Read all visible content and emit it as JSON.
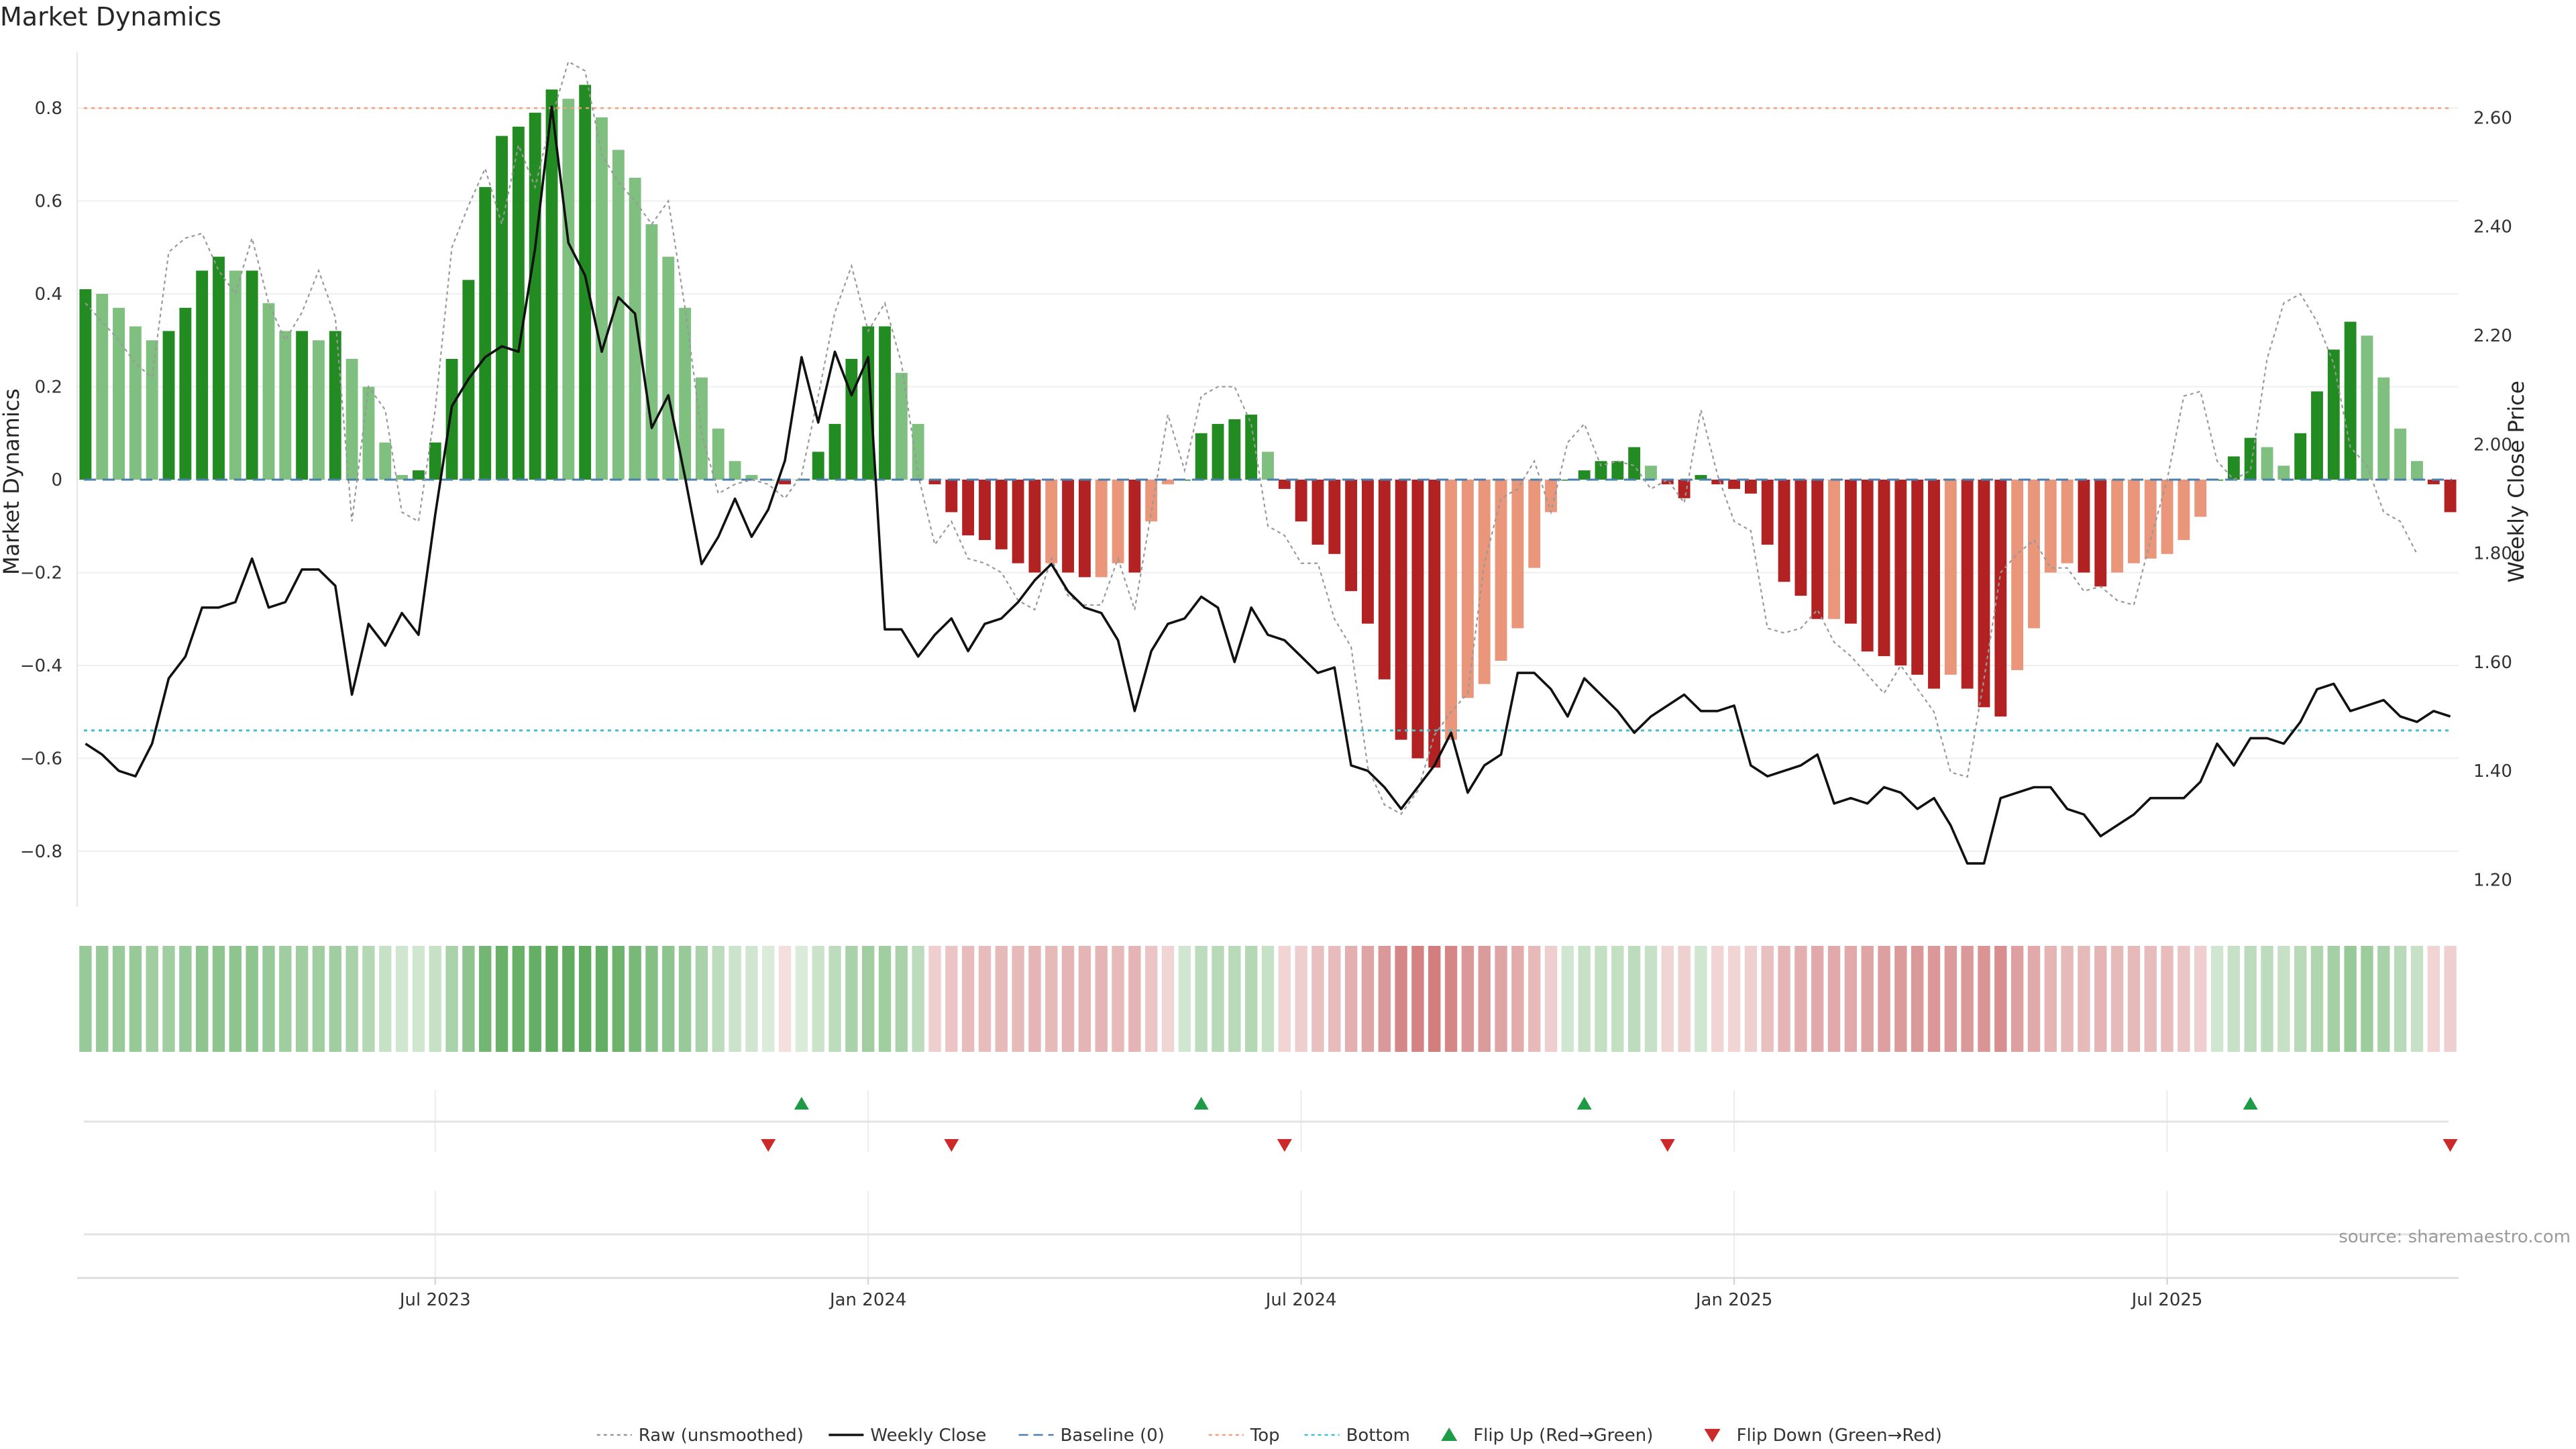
{
  "chart_data": {
    "type": "bar",
    "title": "Market Dynamics",
    "ylabel_left": "Market Dynamics",
    "ylabel_right": "Weekly Close Price",
    "left_ylim": [
      -0.92,
      0.92
    ],
    "left_yticks": [
      -0.8,
      -0.6,
      -0.4,
      -0.2,
      0,
      0.2,
      0.4,
      0.6,
      0.8
    ],
    "right_ylim": [
      1.15,
      2.72
    ],
    "right_yticks": [
      1.2,
      1.4,
      1.6,
      1.8,
      2.0,
      2.2,
      2.4,
      2.6
    ],
    "x_ticks": [
      {
        "label": "Jul 2023",
        "week": 21
      },
      {
        "label": "Jan 2024",
        "week": 47
      },
      {
        "label": "Jul 2024",
        "week": 73
      },
      {
        "label": "Jan 2025",
        "week": 99
      },
      {
        "label": "Jul 2025",
        "week": 125
      }
    ],
    "weeks": 143,
    "top_line": 0.8,
    "bottom_line": -0.54,
    "baseline": 0,
    "grid": true,
    "legend_position": "bottom-center",
    "legend": [
      {
        "label": "Raw (unsmoothed)",
        "kind": "dotted-line",
        "color": "#999999"
      },
      {
        "label": "Weekly Close",
        "kind": "solid-line",
        "color": "#111111"
      },
      {
        "label": "Baseline (0)",
        "kind": "dashed-line",
        "color": "#4a7fb0"
      },
      {
        "label": "Top",
        "kind": "dotted-line",
        "color": "#f0a07a"
      },
      {
        "label": "Bottom",
        "kind": "dotted-line",
        "color": "#3fbfcf"
      },
      {
        "label": "Flip Up (Red→Green)",
        "kind": "triangle-up",
        "color": "#1f9a46"
      },
      {
        "label": "Flip Down (Green→Red)",
        "kind": "triangle-down",
        "color": "#cc2a2a"
      }
    ],
    "colors": {
      "green_strong": "#228b22",
      "green_light": "#7fbf7f",
      "red_strong": "#b22222",
      "red_light": "#e9967a",
      "price_line": "#111111",
      "raw_line": "#999999",
      "flip_up": "#1f9a46",
      "flip_down": "#cc2a2a"
    },
    "market_dynamics": [
      0.41,
      0.4,
      0.37,
      0.33,
      0.3,
      0.32,
      0.37,
      0.45,
      0.48,
      0.45,
      0.45,
      0.38,
      0.32,
      0.32,
      0.3,
      0.32,
      0.26,
      0.2,
      0.08,
      0.01,
      0.02,
      0.08,
      0.26,
      0.43,
      0.63,
      0.74,
      0.76,
      0.79,
      0.84,
      0.82,
      0.85,
      0.78,
      0.71,
      0.65,
      0.55,
      0.48,
      0.37,
      0.22,
      0.11,
      0.04,
      0.01,
      0.0,
      -0.01,
      0.0,
      0.06,
      0.12,
      0.26,
      0.33,
      0.33,
      0.23,
      0.12,
      -0.01,
      -0.07,
      -0.12,
      -0.13,
      -0.15,
      -0.18,
      -0.2,
      -0.18,
      -0.2,
      -0.21,
      -0.21,
      -0.18,
      -0.2,
      -0.09,
      -0.01,
      0.0,
      0.1,
      0.12,
      0.13,
      0.14,
      0.06,
      -0.02,
      -0.09,
      -0.14,
      -0.16,
      -0.24,
      -0.31,
      -0.43,
      -0.56,
      -0.6,
      -0.62,
      -0.56,
      -0.47,
      -0.44,
      -0.39,
      -0.32,
      -0.19,
      -0.07,
      0.0,
      0.02,
      0.04,
      0.04,
      0.07,
      0.03,
      -0.01,
      -0.04,
      0.01,
      -0.01,
      -0.02,
      -0.03,
      -0.14,
      -0.22,
      -0.25,
      -0.3,
      -0.3,
      -0.31,
      -0.37,
      -0.38,
      -0.4,
      -0.42,
      -0.45,
      -0.42,
      -0.45,
      -0.49,
      -0.51,
      -0.41,
      -0.32,
      -0.2,
      -0.18,
      -0.2,
      -0.23,
      -0.2,
      -0.18,
      -0.17,
      -0.16,
      -0.13,
      -0.08,
      0.0,
      0.05,
      0.09,
      0.07,
      0.03,
      0.1,
      0.19,
      0.28,
      0.34,
      0.31,
      0.22,
      0.11,
      0.04,
      -0.01,
      -0.07
    ],
    "raw_unsmoothed": [
      0.38,
      0.34,
      0.3,
      0.25,
      0.22,
      0.49,
      0.52,
      0.53,
      0.45,
      0.4,
      0.52,
      0.38,
      0.3,
      0.36,
      0.45,
      0.35,
      -0.09,
      0.2,
      0.15,
      -0.07,
      -0.09,
      0.15,
      0.5,
      0.59,
      0.67,
      0.55,
      0.72,
      0.63,
      0.78,
      0.9,
      0.88,
      0.7,
      0.64,
      0.6,
      0.55,
      0.6,
      0.37,
      0.1,
      -0.03,
      -0.01,
      0.0,
      -0.01,
      -0.04,
      0.01,
      0.18,
      0.36,
      0.46,
      0.32,
      0.38,
      0.25,
      0.01,
      -0.14,
      -0.09,
      -0.17,
      -0.18,
      -0.2,
      -0.26,
      -0.28,
      -0.17,
      -0.25,
      -0.27,
      -0.27,
      -0.17,
      -0.28,
      -0.07,
      0.14,
      0.02,
      0.18,
      0.2,
      0.2,
      0.12,
      -0.1,
      -0.12,
      -0.18,
      -0.18,
      -0.3,
      -0.36,
      -0.62,
      -0.7,
      -0.72,
      -0.67,
      -0.55,
      -0.5,
      -0.46,
      -0.18,
      -0.04,
      -0.02,
      0.04,
      -0.07,
      0.08,
      0.12,
      0.03,
      0.04,
      0.03,
      -0.02,
      0.0,
      -0.05,
      0.15,
      0.01,
      -0.09,
      -0.11,
      -0.32,
      -0.33,
      -0.32,
      -0.28,
      -0.35,
      -0.38,
      -0.42,
      -0.46,
      -0.4,
      -0.45,
      -0.5,
      -0.63,
      -0.64,
      -0.43,
      -0.2,
      -0.16,
      -0.13,
      -0.19,
      -0.19,
      -0.24,
      -0.23,
      -0.26,
      -0.27,
      -0.13,
      0.0,
      0.18,
      0.19,
      0.04,
      0.0,
      0.02,
      0.26,
      0.38,
      0.4,
      0.34,
      0.25,
      0.07,
      0.03,
      -0.07,
      -0.09,
      -0.16
    ],
    "weekly_close": [
      1.45,
      1.43,
      1.4,
      1.39,
      1.45,
      1.57,
      1.61,
      1.7,
      1.7,
      1.71,
      1.79,
      1.7,
      1.71,
      1.77,
      1.77,
      1.74,
      1.54,
      1.67,
      1.63,
      1.69,
      1.65,
      1.87,
      2.07,
      2.12,
      2.16,
      2.18,
      2.17,
      2.36,
      2.62,
      2.37,
      2.31,
      2.17,
      2.27,
      2.24,
      2.03,
      2.09,
      1.94,
      1.78,
      1.83,
      1.9,
      1.83,
      1.88,
      1.97,
      2.16,
      2.04,
      2.17,
      2.09,
      2.16,
      1.66,
      1.66,
      1.61,
      1.65,
      1.68,
      1.62,
      1.67,
      1.68,
      1.71,
      1.75,
      1.78,
      1.73,
      1.7,
      1.69,
      1.64,
      1.51,
      1.62,
      1.67,
      1.68,
      1.72,
      1.7,
      1.6,
      1.7,
      1.65,
      1.64,
      1.61,
      1.58,
      1.59,
      1.41,
      1.4,
      1.37,
      1.33,
      1.37,
      1.41,
      1.47,
      1.36,
      1.41,
      1.43,
      1.58,
      1.58,
      1.55,
      1.5,
      1.57,
      1.54,
      1.51,
      1.47,
      1.5,
      1.52,
      1.54,
      1.51,
      1.51,
      1.52,
      1.41,
      1.39,
      1.4,
      1.41,
      1.43,
      1.34,
      1.35,
      1.34,
      1.37,
      1.36,
      1.33,
      1.35,
      1.3,
      1.23,
      1.23,
      1.35,
      1.36,
      1.37,
      1.37,
      1.33,
      1.32,
      1.28,
      1.3,
      1.32,
      1.35,
      1.35,
      1.35,
      1.38,
      1.45,
      1.41,
      1.46,
      1.46,
      1.45,
      1.49,
      1.55,
      1.56,
      1.51,
      1.52,
      1.53,
      1.5,
      1.49,
      1.51,
      1.5
    ],
    "flip_up_weeks": [
      43,
      67,
      90,
      130
    ],
    "flip_down_weeks": [
      41,
      52,
      72,
      95,
      142
    ],
    "strip_intensity": [
      0.55,
      0.55,
      0.55,
      0.55,
      0.5,
      0.5,
      0.55,
      0.6,
      0.6,
      0.6,
      0.6,
      0.55,
      0.5,
      0.5,
      0.5,
      0.5,
      0.45,
      0.4,
      0.3,
      0.25,
      0.25,
      0.3,
      0.45,
      0.6,
      0.75,
      0.8,
      0.8,
      0.82,
      0.85,
      0.85,
      0.85,
      0.82,
      0.78,
      0.72,
      0.65,
      0.6,
      0.55,
      0.45,
      0.35,
      0.28,
      0.25,
      0.2,
      0.2,
      0.2,
      0.28,
      0.35,
      0.45,
      0.5,
      0.5,
      0.45,
      0.35,
      0.3,
      0.35,
      0.4,
      0.4,
      0.42,
      0.42,
      0.45,
      0.42,
      0.45,
      0.45,
      0.45,
      0.42,
      0.45,
      0.35,
      0.25,
      0.25,
      0.35,
      0.38,
      0.38,
      0.4,
      0.3,
      0.25,
      0.3,
      0.38,
      0.4,
      0.48,
      0.55,
      0.62,
      0.72,
      0.75,
      0.78,
      0.72,
      0.62,
      0.6,
      0.55,
      0.5,
      0.42,
      0.3,
      0.25,
      0.3,
      0.32,
      0.32,
      0.35,
      0.3,
      0.25,
      0.28,
      0.25,
      0.25,
      0.25,
      0.28,
      0.38,
      0.45,
      0.48,
      0.52,
      0.52,
      0.52,
      0.55,
      0.58,
      0.6,
      0.62,
      0.62,
      0.6,
      0.62,
      0.65,
      0.68,
      0.58,
      0.52,
      0.45,
      0.42,
      0.42,
      0.45,
      0.42,
      0.42,
      0.4,
      0.4,
      0.35,
      0.3,
      0.25,
      0.3,
      0.35,
      0.35,
      0.3,
      0.38,
      0.42,
      0.48,
      0.55,
      0.52,
      0.45,
      0.38,
      0.3,
      0.25,
      0.28
    ]
  },
  "source_text": "source: sharemaestro.com"
}
